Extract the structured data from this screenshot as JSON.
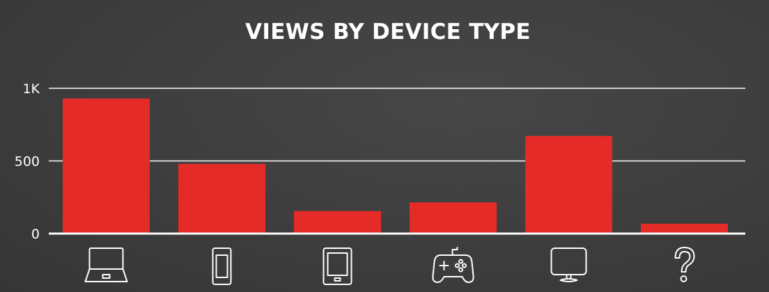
{
  "chart_data": {
    "type": "bar",
    "title": "VIEWS BY DEVICE TYPE",
    "xlabel": "",
    "ylabel": "",
    "categories": [
      "laptop",
      "smartphone",
      "tablet",
      "game-console",
      "tv",
      "unknown"
    ],
    "category_icons": [
      "laptop-icon",
      "smartphone-icon",
      "tablet-icon",
      "gamepad-icon",
      "tv-icon",
      "question-mark-icon"
    ],
    "values": [
      930,
      480,
      155,
      215,
      672,
      68
    ],
    "ylim": [
      0,
      1000
    ],
    "yticks": [
      {
        "value": 0,
        "label": "0"
      },
      {
        "value": 500,
        "label": "500"
      },
      {
        "value": 1000,
        "label": "1K"
      }
    ],
    "grid": true,
    "legend": "none"
  },
  "colors": {
    "bar": "#e52b28",
    "grid": "#ffffff",
    "text": "#ffffff",
    "background": "#3e3e3e"
  }
}
